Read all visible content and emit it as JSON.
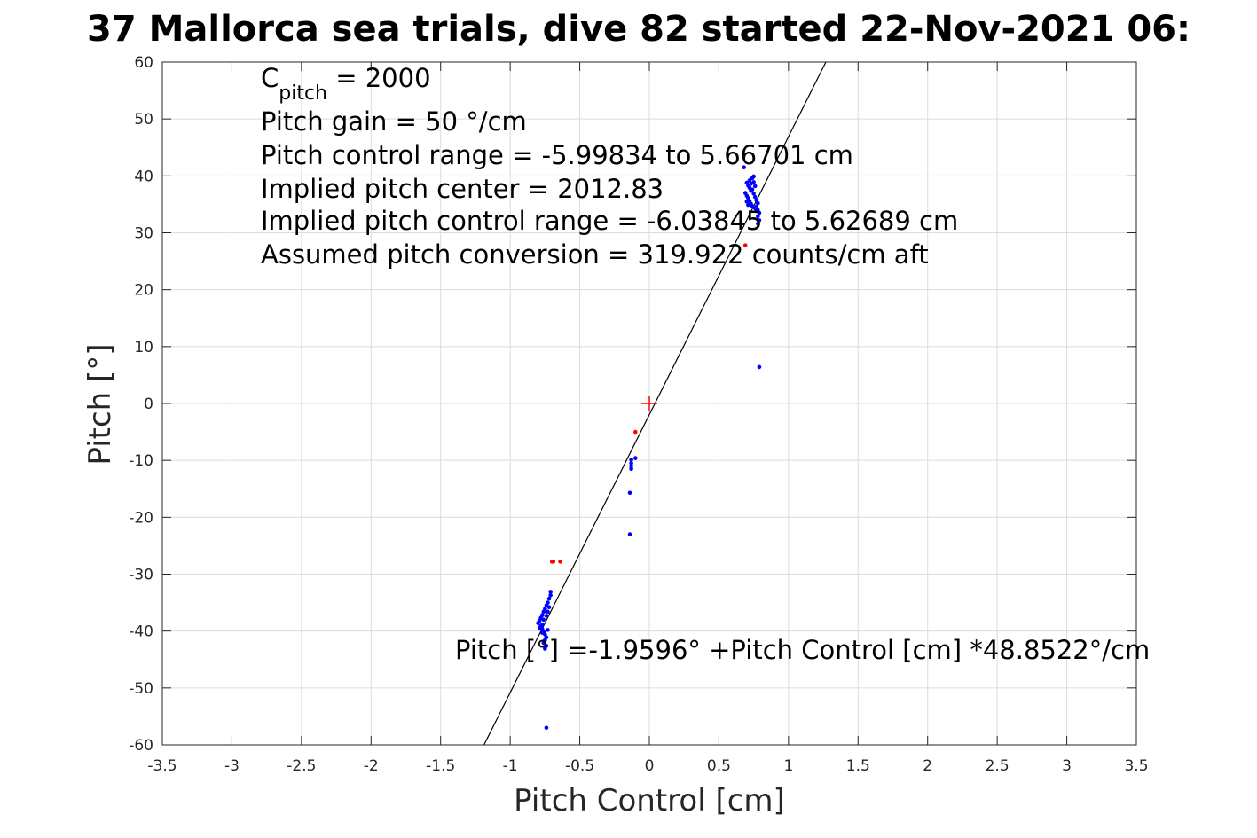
{
  "chart_data": {
    "type": "scatter",
    "title": "37 Mallorca sea trials, dive 82 started 22-Nov-2021 06:",
    "xlabel": "Pitch Control [cm]",
    "ylabel": "Pitch [°]",
    "xlim": [
      -3.5,
      3.5
    ],
    "ylim": [
      -60,
      60
    ],
    "xticks": [
      "-3.5",
      "-3",
      "-2.5",
      "-2",
      "-1.5",
      "-1",
      "-0.5",
      "0",
      "0.5",
      "1",
      "1.5",
      "2",
      "2.5",
      "3",
      "3.5"
    ],
    "yticks": [
      "60",
      "50",
      "40",
      "30",
      "20",
      "10",
      "0",
      "-10",
      "-20",
      "-30",
      "-40",
      "-50",
      "-60"
    ],
    "grid": true,
    "annotations": {
      "c_pitch_main": "C",
      "c_pitch_sub": "pitch",
      "c_pitch_value": " = 2000",
      "gain": "Pitch gain = 50 °/cm",
      "control_range": "Pitch control range = -5.99834 to 5.66701 cm",
      "implied_center": "Implied pitch center = 2012.83",
      "implied_range": "Implied pitch control range = -6.03845 to 5.62689 cm",
      "conversion": "Assumed pitch conversion = 319.922 counts/cm aft",
      "fit_equation": "Pitch [°] =-1.9596° +Pitch Control [cm] *48.8522°/cm"
    },
    "fit_line": {
      "intercept": -1.9596,
      "slope": 48.8522,
      "color": "#000000"
    },
    "center_marker": {
      "x": 0,
      "y": 0,
      "color": "#ff0000"
    },
    "series": [
      {
        "color": "#0000ff",
        "points": [
          [
            0.68,
            41.5
          ],
          [
            0.7,
            38.8
          ],
          [
            0.71,
            38.3
          ],
          [
            0.72,
            37.9
          ],
          [
            0.73,
            37.4
          ],
          [
            0.69,
            37.0
          ],
          [
            0.7,
            36.5
          ],
          [
            0.71,
            36.1
          ],
          [
            0.72,
            35.6
          ],
          [
            0.73,
            35.1
          ],
          [
            0.74,
            34.7
          ],
          [
            0.75,
            38.9
          ],
          [
            0.76,
            38.2
          ],
          [
            0.74,
            37.6
          ],
          [
            0.75,
            36.9
          ],
          [
            0.76,
            36.3
          ],
          [
            0.77,
            35.7
          ],
          [
            0.78,
            35.2
          ],
          [
            0.77,
            34.6
          ],
          [
            0.78,
            34.0
          ],
          [
            0.79,
            33.5
          ],
          [
            0.78,
            32.9
          ],
          [
            0.79,
            32.2
          ],
          [
            0.78,
            31.6
          ],
          [
            0.72,
            39.2
          ],
          [
            0.73,
            38.6
          ],
          [
            0.74,
            39.6
          ],
          [
            0.75,
            39.9
          ],
          [
            0.7,
            35.5
          ],
          [
            0.71,
            34.9
          ],
          [
            0.76,
            34.3
          ],
          [
            0.77,
            33.8
          ],
          [
            0.79,
            6.4
          ],
          [
            -0.1,
            -9.6
          ],
          [
            -0.13,
            -9.9
          ],
          [
            -0.13,
            -10.5
          ],
          [
            -0.13,
            -11.0
          ],
          [
            -0.13,
            -11.5
          ],
          [
            -0.14,
            -15.7
          ],
          [
            -0.14,
            -23.0
          ],
          [
            -0.71,
            -33.1
          ],
          [
            -0.71,
            -33.7
          ],
          [
            -0.72,
            -34.3
          ],
          [
            -0.73,
            -35.0
          ],
          [
            -0.74,
            -35.5
          ],
          [
            -0.75,
            -36.1
          ],
          [
            -0.76,
            -36.6
          ],
          [
            -0.77,
            -37.2
          ],
          [
            -0.78,
            -37.7
          ],
          [
            -0.79,
            -38.2
          ],
          [
            -0.8,
            -38.6
          ],
          [
            -0.78,
            -39.1
          ],
          [
            -0.77,
            -39.6
          ],
          [
            -0.76,
            -40.1
          ],
          [
            -0.75,
            -40.6
          ],
          [
            -0.74,
            -41.1
          ],
          [
            -0.75,
            -41.6
          ],
          [
            -0.76,
            -42.1
          ],
          [
            -0.74,
            -42.6
          ],
          [
            -0.75,
            -43.1
          ],
          [
            -0.77,
            -38.9
          ],
          [
            -0.76,
            -38.0
          ],
          [
            -0.74,
            -37.3
          ],
          [
            -0.73,
            -36.6
          ],
          [
            -0.72,
            -35.8
          ],
          [
            -0.79,
            -39.4
          ],
          [
            -0.77,
            -40.3
          ],
          [
            -0.73,
            -39.8
          ],
          [
            -0.74,
            -57.0
          ]
        ]
      },
      {
        "color": "#ff0000",
        "points": [
          [
            -0.1,
            -5.0
          ],
          [
            -0.7,
            -27.8
          ],
          [
            -0.69,
            -27.8
          ],
          [
            -0.64,
            -27.8
          ],
          [
            0.69,
            27.8
          ]
        ]
      }
    ]
  }
}
